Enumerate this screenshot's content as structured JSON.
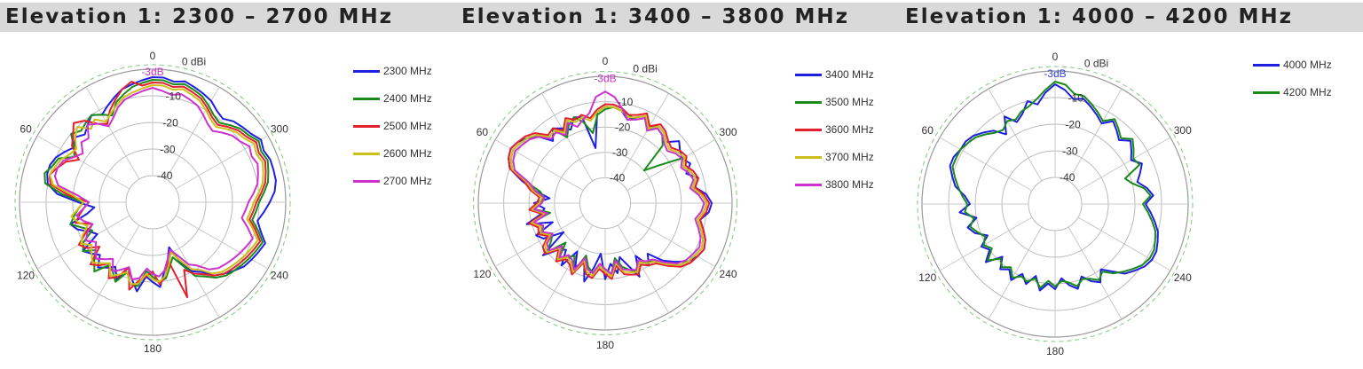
{
  "chart_data": [
    {
      "type": "polar-line",
      "title": "Elevation 1: 2300 – 2700 MHz",
      "r_unit": "0 dBi",
      "r_ticks": [
        "-10",
        "-20",
        "-30",
        "-40"
      ],
      "angle_labels": [
        "0",
        "60",
        "120",
        "180",
        "240",
        "300"
      ],
      "reference_label": "-3dB",
      "r_range": [
        -50,
        0
      ],
      "series": [
        {
          "name": "2300 MHz",
          "color": "#1f1fe0",
          "values": [
            -3,
            -4,
            -5,
            -6,
            -8,
            -10,
            -12,
            -10,
            -12,
            -14,
            -12,
            -14,
            -12,
            -10,
            -9,
            -9,
            -10,
            -14,
            -22,
            -28,
            -25,
            -18,
            -20,
            -24,
            -26,
            -18,
            -20,
            -22,
            -18,
            -20,
            -22,
            -18,
            -24,
            -20,
            -16,
            -22,
            -20,
            -18,
            -24,
            -28,
            -32,
            -25,
            -20,
            -18,
            -14,
            -12,
            -10,
            -8,
            -7,
            -6,
            -5,
            -8,
            -10,
            -8,
            -6,
            -4,
            -3,
            -3,
            -3,
            -4,
            -3,
            -5,
            -6,
            -7,
            -9,
            -8,
            -6,
            -5,
            -4,
            -3,
            -4,
            -3
          ]
        },
        {
          "name": "2400 MHz",
          "color": "#1a8a1a",
          "values": [
            -4,
            -5,
            -6,
            -8,
            -10,
            -14,
            -12,
            -10,
            -11,
            -12,
            -10,
            -14,
            -16,
            -11,
            -10,
            -8,
            -9,
            -16,
            -24,
            -22,
            -20,
            -18,
            -22,
            -25,
            -20,
            -18,
            -22,
            -19,
            -16,
            -21,
            -20,
            -17,
            -22,
            -18,
            -18,
            -24,
            -22,
            -20,
            -21,
            -25,
            -28,
            -24,
            -18,
            -16,
            -13,
            -11,
            -10,
            -9,
            -8,
            -7,
            -6,
            -9,
            -12,
            -11,
            -10,
            -8,
            -6,
            -5,
            -4,
            -5,
            -4,
            -6,
            -7,
            -9,
            -11,
            -10,
            -8,
            -6,
            -5,
            -4,
            -5,
            -4
          ]
        },
        {
          "name": "2500 MHz",
          "color": "#e21f2d",
          "values": [
            -5,
            -6,
            -4,
            -6,
            -9,
            -12,
            -16,
            -14,
            -10,
            -8,
            -11,
            -13,
            -18,
            -14,
            -12,
            -10,
            -11,
            -18,
            -26,
            -24,
            -22,
            -20,
            -26,
            -22,
            -18,
            -20,
            -24,
            -17,
            -19,
            -22,
            -17,
            -19,
            -24,
            -16,
            -20,
            -22,
            -24,
            -19,
            -22,
            -27,
            -12,
            -22,
            -19,
            -17,
            -14,
            -12,
            -11,
            -10,
            -9,
            -8,
            -7,
            -10,
            -13,
            -12,
            -11,
            -9,
            -7,
            -6,
            -5,
            -6,
            -5,
            -7,
            -8,
            -10,
            -12,
            -11,
            -9,
            -7,
            -6,
            -5,
            -6,
            -5
          ]
        },
        {
          "name": "2600 MHz",
          "color": "#cdbf1a",
          "values": [
            -6,
            -7,
            -8,
            -9,
            -11,
            -13,
            -15,
            -12,
            -14,
            -10,
            -12,
            -15,
            -14,
            -12,
            -11,
            -10,
            -12,
            -20,
            -24,
            -22,
            -19,
            -21,
            -24,
            -21,
            -19,
            -22,
            -20,
            -18,
            -20,
            -22,
            -18,
            -20,
            -22,
            -18,
            -19,
            -23,
            -21,
            -20,
            -22,
            -26,
            -30,
            -26,
            -21,
            -19,
            -15,
            -13,
            -12,
            -11,
            -10,
            -9,
            -8,
            -11,
            -14,
            -13,
            -12,
            -10,
            -8,
            -7,
            -6,
            -7,
            -6,
            -8,
            -9,
            -11,
            -13,
            -12,
            -10,
            -8,
            -7,
            -6,
            -7,
            -6
          ]
        },
        {
          "name": "2700 MHz",
          "color": "#cc33cc",
          "values": [
            -7,
            -8,
            -9,
            -10,
            -12,
            -15,
            -17,
            -14,
            -12,
            -16,
            -15,
            -18,
            -16,
            -13,
            -12,
            -12,
            -14,
            -22,
            -26,
            -24,
            -21,
            -23,
            -26,
            -23,
            -21,
            -24,
            -22,
            -20,
            -22,
            -24,
            -20,
            -22,
            -24,
            -20,
            -21,
            -25,
            -23,
            -22,
            -24,
            -28,
            -31,
            -28,
            -23,
            -21,
            -17,
            -15,
            -14,
            -13,
            -12,
            -11,
            -10,
            -13,
            -16,
            -15,
            -14,
            -12,
            -10,
            -9,
            -8,
            -9,
            -8,
            -10,
            -11,
            -13,
            -15,
            -14,
            -12,
            -10,
            -9,
            -8,
            -9,
            -8
          ]
        }
      ]
    },
    {
      "type": "polar-line",
      "title": "Elevation 1: 3400 – 3800 MHz",
      "r_unit": "0 dBi",
      "r_ticks": [
        "-10",
        "-20",
        "-30",
        "-40"
      ],
      "angle_labels": [
        "0",
        "60",
        "120",
        "180",
        "240",
        "300"
      ],
      "reference_label": "-3dB",
      "r_range": [
        -50,
        0
      ],
      "series": [
        {
          "name": "3400 MHz",
          "color": "#1f1fe0",
          "values": [
            -12,
            -14,
            -28,
            -15,
            -14,
            -18,
            -16,
            -14,
            -18,
            -13,
            -10,
            -8,
            -7,
            -8,
            -10,
            -16,
            -22,
            -28,
            -22,
            -26,
            -24,
            -18,
            -28,
            -20,
            -22,
            -30,
            -18,
            -24,
            -26,
            -20,
            -28,
            -22,
            -26,
            -18,
            -24,
            -30,
            -20,
            -26,
            -22,
            -28,
            -24,
            -18,
            -26,
            -20,
            -24,
            -18,
            -14,
            -10,
            -8,
            -7,
            -8,
            -10,
            -12,
            -9,
            -8,
            -10,
            -14,
            -12,
            -16,
            -13,
            -15,
            -14,
            -12,
            -16,
            -14,
            -13,
            -15,
            -12,
            -14,
            -16,
            -13,
            -12
          ]
        },
        {
          "name": "3500 MHz",
          "color": "#1a8a1a",
          "values": [
            -13,
            -15,
            -22,
            -17,
            -14,
            -16,
            -20,
            -15,
            -16,
            -12,
            -10,
            -9,
            -8,
            -9,
            -11,
            -18,
            -24,
            -26,
            -24,
            -22,
            -28,
            -20,
            -24,
            -22,
            -26,
            -24,
            -20,
            -28,
            -22,
            -24,
            -26,
            -20,
            -28,
            -24,
            -22,
            -26,
            -24,
            -22,
            -28,
            -24,
            -22,
            -20,
            -24,
            -22,
            -20,
            -16,
            -12,
            -10,
            -9,
            -8,
            -9,
            -11,
            -13,
            -11,
            -10,
            -12,
            -15,
            -13,
            -14,
            -16,
            -14,
            -24,
            -30,
            -18,
            -15,
            -14,
            -16,
            -13,
            -15,
            -14,
            -13,
            -12
          ]
        },
        {
          "name": "3600 MHz",
          "color": "#e21f2d",
          "values": [
            -11,
            -13,
            -16,
            -14,
            -15,
            -13,
            -17,
            -14,
            -15,
            -11,
            -9,
            -8,
            -7,
            -8,
            -10,
            -17,
            -20,
            -24,
            -23,
            -20,
            -25,
            -19,
            -22,
            -21,
            -24,
            -20,
            -19,
            -24,
            -20,
            -23,
            -22,
            -19,
            -25,
            -21,
            -20,
            -24,
            -22,
            -20,
            -25,
            -21,
            -20,
            -19,
            -22,
            -20,
            -19,
            -15,
            -11,
            -9,
            -8,
            -7,
            -8,
            -10,
            -12,
            -10,
            -9,
            -11,
            -14,
            -12,
            -13,
            -15,
            -13,
            -14,
            -16,
            -15,
            -13,
            -12,
            -15,
            -11,
            -13,
            -14,
            -12,
            -11
          ]
        },
        {
          "name": "3700 MHz",
          "color": "#cdbf1a",
          "values": [
            -12,
            -14,
            -17,
            -15,
            -16,
            -14,
            -18,
            -15,
            -16,
            -12,
            -10,
            -9,
            -8,
            -9,
            -11,
            -18,
            -21,
            -25,
            -24,
            -21,
            -26,
            -20,
            -23,
            -22,
            -25,
            -21,
            -20,
            -25,
            -21,
            -24,
            -23,
            -20,
            -26,
            -22,
            -21,
            -25,
            -23,
            -21,
            -26,
            -22,
            -21,
            -20,
            -23,
            -21,
            -20,
            -16,
            -12,
            -10,
            -9,
            -8,
            -9,
            -11,
            -13,
            -11,
            -10,
            -12,
            -15,
            -13,
            -14,
            -16,
            -14,
            -15,
            -17,
            -16,
            -14,
            -13,
            -16,
            -12,
            -14,
            -15,
            -13,
            -12
          ]
        },
        {
          "name": "3800 MHz",
          "color": "#cc33cc",
          "values": [
            -6,
            -8,
            -14,
            -16,
            -18,
            -15,
            -19,
            -16,
            -17,
            -13,
            -11,
            -10,
            -9,
            -10,
            -12,
            -19,
            -22,
            -26,
            -25,
            -22,
            -27,
            -21,
            -24,
            -23,
            -26,
            -22,
            -21,
            -26,
            -22,
            -25,
            -24,
            -21,
            -27,
            -23,
            -22,
            -26,
            -24,
            -22,
            -27,
            -23,
            -22,
            -21,
            -24,
            -22,
            -21,
            -17,
            -13,
            -11,
            -10,
            -9,
            -10,
            -12,
            -14,
            -12,
            -11,
            -13,
            -16,
            -14,
            -15,
            -17,
            -15,
            -16,
            -18,
            -17,
            -15,
            -14,
            -17,
            -13,
            -15,
            -16,
            -12,
            -8
          ]
        }
      ]
    },
    {
      "type": "polar-line",
      "title": "Elevation 1: 4000 – 4200 MHz",
      "r_unit": "0 dBi",
      "r_ticks": [
        "-10",
        "-20",
        "-30",
        "-40"
      ],
      "angle_labels": [
        "0",
        "60",
        "120",
        "180",
        "240",
        "300"
      ],
      "reference_label": "-3dB",
      "r_range": [
        -50,
        0
      ],
      "series": [
        {
          "name": "4000 MHz",
          "color": "#1f1fe0",
          "values": [
            -5,
            -8,
            -12,
            -10,
            -14,
            -16,
            -12,
            -18,
            -14,
            -12,
            -10,
            -9,
            -9,
            -8,
            -8,
            -10,
            -12,
            -16,
            -18,
            -14,
            -20,
            -16,
            -18,
            -22,
            -18,
            -20,
            -16,
            -22,
            -18,
            -20,
            -17,
            -21,
            -18,
            -22,
            -17,
            -20,
            -18,
            -22,
            -19,
            -17,
            -21,
            -18,
            -16,
            -20,
            -17,
            -13,
            -11,
            -9,
            -8,
            -8,
            -9,
            -10,
            -12,
            -14,
            -16,
            -13,
            -15,
            -18,
            -16,
            -14,
            -17,
            -15,
            -13,
            -16,
            -14,
            -12,
            -15,
            -13,
            -11,
            -9,
            -10,
            -7
          ]
        },
        {
          "name": "4200 MHz",
          "color": "#1a8a1a",
          "values": [
            -4,
            -7,
            -10,
            -12,
            -13,
            -15,
            -14,
            -16,
            -15,
            -13,
            -11,
            -10,
            -9,
            -9,
            -9,
            -11,
            -13,
            -15,
            -17,
            -16,
            -19,
            -17,
            -19,
            -21,
            -19,
            -21,
            -17,
            -21,
            -19,
            -21,
            -18,
            -20,
            -19,
            -21,
            -18,
            -21,
            -19,
            -21,
            -20,
            -18,
            -20,
            -19,
            -17,
            -19,
            -16,
            -14,
            -12,
            -10,
            -9,
            -9,
            -10,
            -11,
            -13,
            -15,
            -17,
            -14,
            -16,
            -20,
            -22,
            -15,
            -16,
            -14,
            -12,
            -15,
            -13,
            -11,
            -14,
            -12,
            -10,
            -8,
            -8,
            -5
          ]
        }
      ]
    }
  ]
}
